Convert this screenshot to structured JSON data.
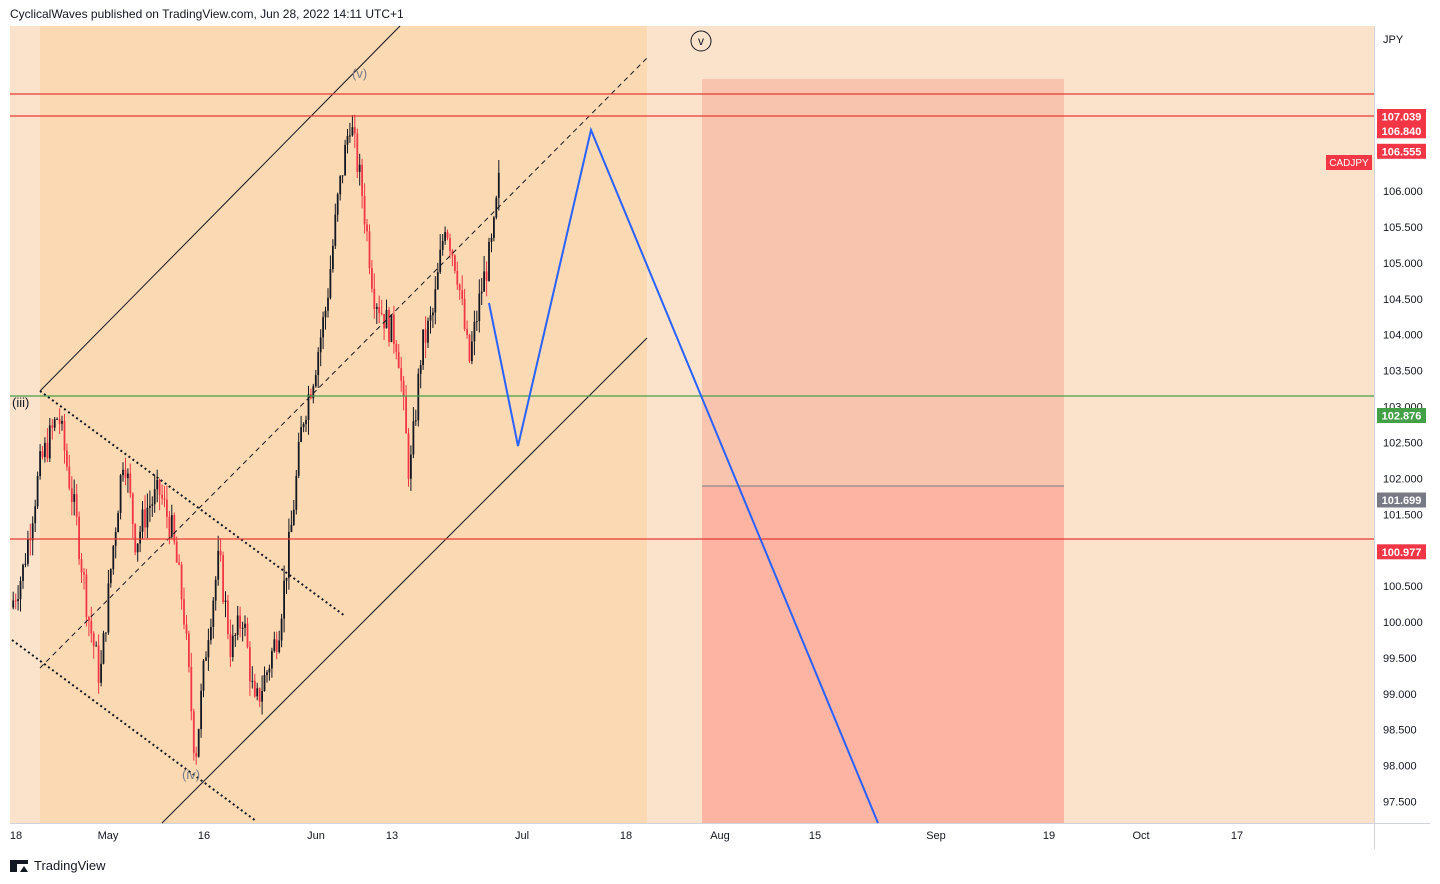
{
  "header": {
    "publisher_line": "CyclicalWaves published on TradingView.com, Jun 28, 2022 14:11 UTC+1"
  },
  "footer": {
    "brand": "TradingView"
  },
  "colors": {
    "background": "#fbe3cb",
    "channel_fill": "#fbd9b3",
    "red_line": "#e53935",
    "green_line": "#43a047",
    "projection": "#2962ff",
    "target_zone_upper": "#f9c4ad",
    "target_zone_lower": "#fdb4a2",
    "bull": "#131722",
    "bear": "#f23645"
  },
  "chart_data": {
    "type": "candlestick",
    "symbol_label": "CADJPY",
    "currency": "JPY",
    "y_range": [
      97.2,
      108.3
    ],
    "y_ticks": [
      "97.500",
      "98.000",
      "98.500",
      "99.000",
      "99.500",
      "100.000",
      "100.500",
      "101.500",
      "102.000",
      "102.500",
      "103.000",
      "103.500",
      "104.000",
      "104.500",
      "105.000",
      "105.500",
      "106.000"
    ],
    "x_ticks": [
      "18",
      "May",
      "16",
      "Jun",
      "13",
      "Jul",
      "18",
      "Aug",
      "15",
      "Sep",
      "19",
      "Oct",
      "17"
    ],
    "levels": [
      {
        "label": "107.039",
        "value": 107.039,
        "color": "#f23645"
      },
      {
        "label": "106.840",
        "value": 106.84,
        "color": "#f23645"
      },
      {
        "label": "106.555",
        "value": 106.555,
        "color": "#f23645"
      },
      {
        "label": "102.876",
        "value": 102.876,
        "color": "#43a047"
      },
      {
        "label": "101.699",
        "value": 101.699,
        "color": "#787b86"
      },
      {
        "label": "100.977",
        "value": 100.977,
        "color": "#f23645"
      }
    ],
    "wave_labels": [
      "(iii)",
      "(iv)",
      "(v)",
      "v"
    ],
    "price_path_anchors": [
      {
        "t": 0,
        "p": 100.2
      },
      {
        "t": 2,
        "p": 100.7
      },
      {
        "t": 5,
        "p": 102.2
      },
      {
        "t": 8,
        "p": 102.9
      },
      {
        "t": 11,
        "p": 101.4
      },
      {
        "t": 13,
        "p": 100.1
      },
      {
        "t": 15,
        "p": 99.2
      },
      {
        "t": 17,
        "p": 100.9
      },
      {
        "t": 19,
        "p": 102.4
      },
      {
        "t": 21,
        "p": 101.1
      },
      {
        "t": 23,
        "p": 101.6
      },
      {
        "t": 25,
        "p": 101.8
      },
      {
        "t": 27,
        "p": 101.3
      },
      {
        "t": 29,
        "p": 100.2
      },
      {
        "t": 31,
        "p": 98.1
      },
      {
        "t": 33,
        "p": 99.8
      },
      {
        "t": 35,
        "p": 100.9
      },
      {
        "t": 37,
        "p": 99.6
      },
      {
        "t": 39,
        "p": 100.1
      },
      {
        "t": 41,
        "p": 98.8
      },
      {
        "t": 43,
        "p": 99.3
      },
      {
        "t": 45,
        "p": 99.9
      },
      {
        "t": 47,
        "p": 101.2
      },
      {
        "t": 49,
        "p": 102.8
      },
      {
        "t": 51,
        "p": 103.5
      },
      {
        "t": 53,
        "p": 104.4
      },
      {
        "t": 55,
        "p": 105.9
      },
      {
        "t": 57,
        "p": 107.0
      },
      {
        "t": 59,
        "p": 106.0
      },
      {
        "t": 61,
        "p": 104.6
      },
      {
        "t": 63,
        "p": 104.2
      },
      {
        "t": 65,
        "p": 103.9
      },
      {
        "t": 67,
        "p": 102.0
      },
      {
        "t": 69,
        "p": 103.8
      },
      {
        "t": 71,
        "p": 104.3
      },
      {
        "t": 73,
        "p": 105.6
      },
      {
        "t": 75,
        "p": 104.9
      },
      {
        "t": 77,
        "p": 103.6
      },
      {
        "t": 79,
        "p": 104.6
      },
      {
        "t": 81,
        "p": 105.3
      },
      {
        "t": 82,
        "p": 106.1
      }
    ]
  }
}
